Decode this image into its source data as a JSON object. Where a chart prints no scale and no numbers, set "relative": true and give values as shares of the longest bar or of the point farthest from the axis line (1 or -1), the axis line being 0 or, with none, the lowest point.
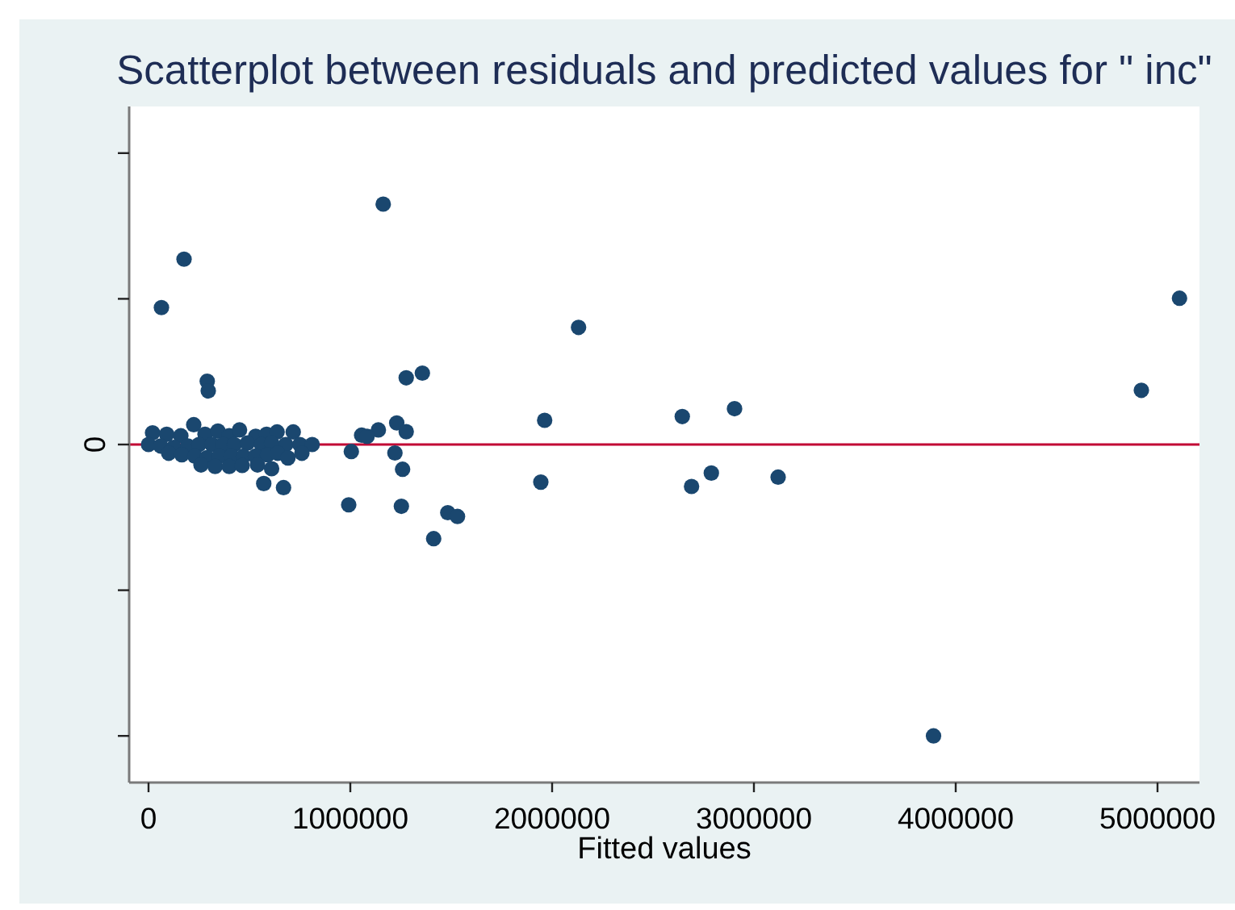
{
  "chart_data": {
    "type": "scatter",
    "title": "Scatterplot between residuals and predicted values for \" inc\"",
    "xlabel": "Fitted values",
    "relative": true,
    "x": [
      1163000,
      176000,
      64000,
      291000,
      296000,
      1277000,
      1357000,
      1230000,
      1277000,
      1139000,
      1056000,
      1083000,
      1005000,
      1221000,
      1259000,
      571000,
      669000,
      992000,
      1253000,
      1483000,
      1531000,
      1413000,
      2131000,
      1963000,
      1944000,
      2645000,
      2904000,
      2691000,
      2789000,
      3120000,
      5109000,
      4920000,
      3890000,
      20000,
      90000,
      160000,
      224000,
      280000,
      344000,
      400000,
      451000,
      531000,
      585000,
      637000,
      717000,
      0,
      60000,
      125000,
      195000,
      250000,
      315000,
      370000,
      425000,
      490000,
      560000,
      610000,
      680000,
      750000,
      811000,
      100000,
      165000,
      230000,
      290000,
      350000,
      410000,
      470000,
      530000,
      590000,
      640000,
      691000,
      760000,
      260000,
      330000,
      400000,
      464000,
      540000,
      610000
    ],
    "values": [
      0.825,
      0.636,
      0.47,
      0.217,
      0.184,
      0.229,
      0.245,
      0.074,
      0.044,
      0.05,
      0.032,
      0.028,
      -0.024,
      -0.029,
      -0.085,
      -0.134,
      -0.148,
      -0.207,
      -0.212,
      -0.234,
      -0.247,
      -0.323,
      0.402,
      0.083,
      -0.129,
      0.096,
      0.123,
      -0.144,
      -0.098,
      -0.112,
      0.502,
      0.186,
      -1,
      0.04,
      0.035,
      0.03,
      0.068,
      0.035,
      0.046,
      0.03,
      0.05,
      0.028,
      0.035,
      0.043,
      0.043,
      0,
      -0.005,
      -0.01,
      -0.005,
      0,
      0,
      0,
      0,
      0.005,
      0,
      0.005,
      0,
      0,
      0,
      -0.03,
      -0.035,
      -0.04,
      -0.045,
      -0.04,
      -0.04,
      -0.04,
      -0.04,
      -0.035,
      -0.03,
      -0.046,
      -0.03,
      -0.07,
      -0.075,
      -0.075,
      -0.072,
      -0.07,
      -0.083
    ],
    "color": "#1a476f",
    "marker": "circle",
    "xlim": [
      -96000,
      5208000
    ],
    "xticks": [
      0,
      1000000,
      2000000,
      3000000,
      4000000,
      5000000
    ],
    "ref_lines": [
      {
        "axis": "y",
        "value": 0,
        "color": "#c10534"
      }
    ],
    "annotations": [
      "0"
    ]
  }
}
